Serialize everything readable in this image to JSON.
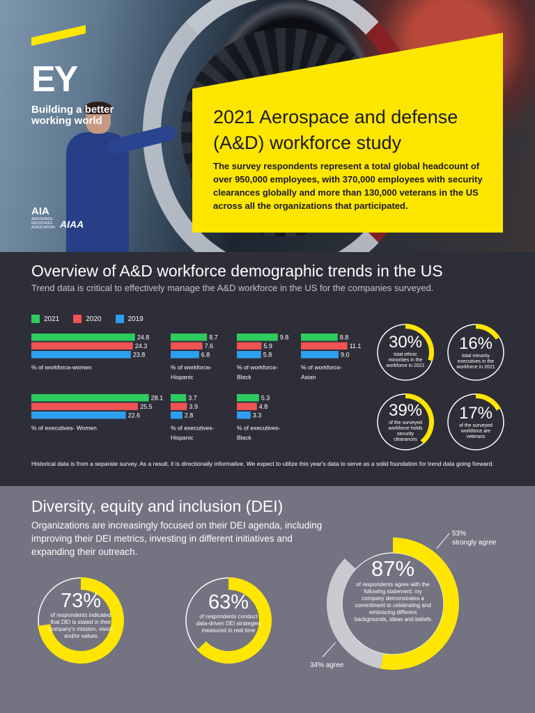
{
  "brand": {
    "logo": "EY",
    "tagline": "Building a better working world",
    "partner1_short": "AIA",
    "partner1_full": "AEROSPACE INDUSTRIES ASSOCIATION",
    "partner2": "AIAA"
  },
  "hero": {
    "title": "2021 Aerospace and defense (A&D) workforce study",
    "description": "The survey respondents represent a total global headcount of over 950,000 employees, with 370,000 employees with security clearances globally and more than 130,000 veterans in the US across all the organizations that participated."
  },
  "overview": {
    "title": "Overview of A&D workforce demographic trends in the US",
    "subtitle": "Trend data is critical to effectively manage the A&D workforce in the US for the companies surveyed.",
    "note": "Historical data is from a separate survey. As a result, it is directionally informative. We expect to utilize this year's data to serve as a solid foundation for trend data going forward."
  },
  "colors": {
    "accent": "#ffe600",
    "c2021": "#2ecc5f",
    "c2020": "#ef5354",
    "c2019": "#2e9ef0",
    "dark": "#2e2e38",
    "grey": "#737381"
  },
  "chart_data": [
    {
      "type": "bar",
      "orientation": "horizontal",
      "legend": [
        "2021",
        "2020",
        "2019"
      ],
      "groups": [
        {
          "label": "% of workforce-women",
          "values": [
            24.8,
            24.3,
            23.8
          ]
        },
        {
          "label": "% of workforce-Hispanic",
          "values": [
            8.7,
            7.6,
            6.8
          ]
        },
        {
          "label": "% of workforce-Black",
          "values": [
            9.8,
            5.9,
            5.8
          ]
        },
        {
          "label": "% of workforce-Asian",
          "values": [
            8.8,
            11.1,
            9.0
          ]
        },
        {
          "label": "% of executives- Women",
          "values": [
            28.1,
            25.5,
            22.6
          ]
        },
        {
          "label": "% of executives-Hispanic",
          "values": [
            3.7,
            3.9,
            2.8
          ]
        },
        {
          "label": "% of executives-Black",
          "values": [
            5.3,
            4.8,
            3.3
          ]
        }
      ],
      "value_labels": [
        [
          "24.8",
          "24.3",
          "23.8"
        ],
        [
          "8.7",
          "7.6",
          "6.8"
        ],
        [
          "9.8",
          "5.9",
          "5.8"
        ],
        [
          "8.8",
          "11.1",
          "9.0"
        ],
        [
          "28.1",
          "25.5",
          "22.6"
        ],
        [
          "3.7",
          "3.9",
          "2.8"
        ],
        [
          "5.3",
          "4.8",
          "3.3"
        ]
      ]
    },
    {
      "type": "pie",
      "style": "donut",
      "items": [
        {
          "value": 30,
          "text": "30%",
          "label": "total ethnic minorities in the workforce in 2021"
        },
        {
          "value": 16,
          "text": "16%",
          "label": "total minority executives in the workforce in 2021"
        },
        {
          "value": 39,
          "text": "39%",
          "label": "of the surveyed workforce holds security clearances"
        },
        {
          "value": 17,
          "text": "17%",
          "label": "of the surveyed workforce are veterans"
        }
      ]
    },
    {
      "type": "pie",
      "style": "donut",
      "items": [
        {
          "value": 73,
          "text": "73%",
          "label": "of respondents indicated that DEI is stated in their company's mission, vision and/or values"
        },
        {
          "value": 63,
          "text": "63%",
          "label": "of respondents conduct data-driven DEI strategies measured in real time"
        }
      ]
    },
    {
      "type": "pie",
      "style": "donut",
      "total_text": "87%",
      "total_label": "of respondents agree with the following statement: my company demonstrates a commitment to celebrating and embracing different backgrounds, ideas and beliefs",
      "segments": [
        {
          "name": "strongly agree",
          "value": 53,
          "callout": "53%\nstrongly agree"
        },
        {
          "name": "agree",
          "value": 34,
          "callout": "34% agree"
        }
      ]
    }
  ],
  "dei": {
    "title": "Diversity, equity and inclusion (DEI)",
    "description": "Organizations are increasingly focused on their DEI agenda, including improving their DEI metrics, investing in different initiatives and expanding their outreach.",
    "callout_strong_pct": "53%",
    "callout_strong_label": "strongly agree",
    "callout_agree": "34% agree"
  }
}
